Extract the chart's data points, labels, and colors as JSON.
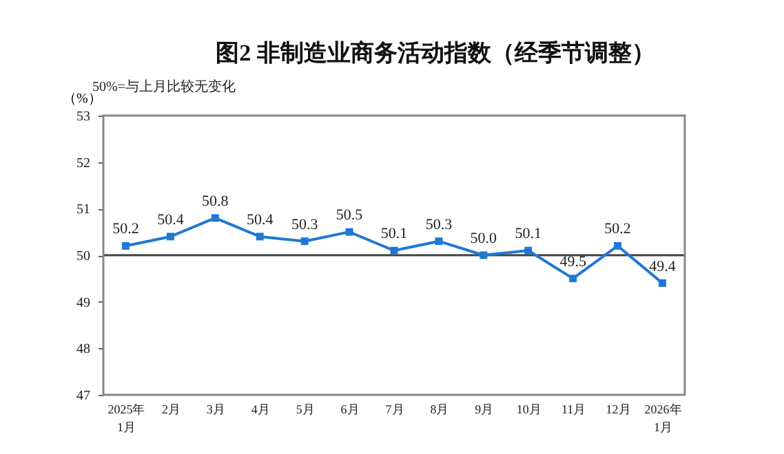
{
  "chart_data": {
    "type": "line",
    "title": "图2  非制造业商务活动指数（经季节调整）",
    "ylabel": "（%）",
    "annotations": [
      "50%=与上月比较无变化"
    ],
    "categories": [
      "2025年\n1月",
      "2月",
      "3月",
      "4月",
      "5月",
      "6月",
      "7月",
      "8月",
      "9月",
      "10月",
      "11月",
      "12月",
      "2026年\n1月"
    ],
    "series": [
      {
        "color": "#1f78d1",
        "values": [
          50.2,
          50.4,
          50.8,
          50.4,
          50.3,
          50.5,
          50.1,
          50.3,
          50.0,
          50.1,
          49.5,
          50.2,
          49.4
        ],
        "value_labels": [
          "50.2",
          "50.4",
          "50.8",
          "50.4",
          "50.3",
          "50.5",
          "50.1",
          "50.3",
          "50.0",
          "50.1",
          "49.5",
          "50.2",
          "49.4"
        ]
      }
    ],
    "ylim": [
      47,
      53
    ],
    "yticks": [
      47,
      48,
      49,
      50,
      51,
      52,
      53
    ],
    "ref_lines": [
      {
        "axis": "y",
        "value": 50,
        "color": "#404040"
      }
    ],
    "marker": "square",
    "legend": false,
    "grid": false
  }
}
